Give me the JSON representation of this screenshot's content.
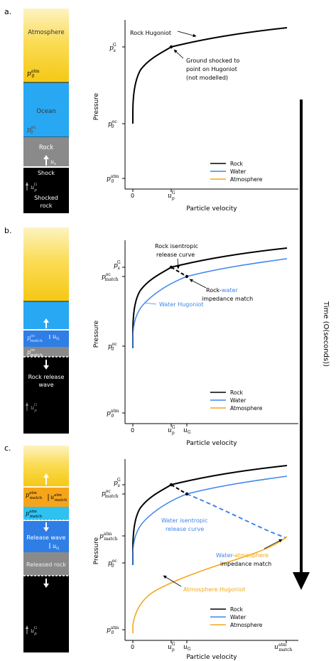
{
  "panels": [
    {
      "letter": "a.",
      "column": [
        {
          "label": "Atmosphere"
        },
        {
          "label": "Ocean"
        },
        {
          "label": "Rock"
        },
        {
          "label": "Shock"
        },
        {
          "label": "Shocked rock"
        }
      ],
      "column_params": {
        "p0_atm": "p",
        "p0_oc": "p",
        "us": "u",
        "upG": "u"
      },
      "axes": {
        "ylabel": "Pressure",
        "xlabel": "Particle velocity",
        "x0": "0"
      },
      "annotations": {
        "rock_hugoniot": "Rock Hugoniot",
        "ground_line1": "Ground shocked to",
        "ground_line2": "point on Hugoniot",
        "ground_line3": "(not modelled)"
      },
      "legend": [
        "Rock",
        "Water",
        "Atmosphere"
      ]
    },
    {
      "letter": "b.",
      "column": [
        {
          "label": "Rock release"
        },
        {
          "label": "wave"
        }
      ],
      "axes": {
        "ylabel": "Pressure",
        "xlabel": "Particle velocity",
        "x0": "0"
      },
      "annotations": {
        "isentrope_line1": "Rock isentropic",
        "isentrope_line2": "release curve",
        "impedance_rock": "Rock-",
        "impedance_water": "water",
        "impedance_line2": "impedance match",
        "water_hugoniot": "Water Hugoniot"
      },
      "legend": [
        "Rock",
        "Water",
        "Atmosphere"
      ]
    },
    {
      "letter": "c.",
      "column": [
        {
          "label": "Release wave"
        },
        {
          "label": "Released rock"
        }
      ],
      "axes": {
        "ylabel": "Pressure",
        "xlabel": "Particle velocity",
        "x0": "0"
      },
      "annotations": {
        "water_isentrope_line1": "Water isentropic",
        "water_isentrope_line2": "release curve",
        "impedance_water": "Water-",
        "impedance_atm": "atmosphere",
        "impedance_line2": "impedance match",
        "atm_hugoniot": "Atmosphere Hugoniot"
      },
      "legend": [
        "Rock",
        "Water",
        "Atmosphere"
      ]
    }
  ],
  "time_arrow_label": "Time (O(seconds))",
  "colors": {
    "rock_curve": "#000000",
    "water_curve": "#3f86e8",
    "atmosphere_curve": "#f2a81d",
    "ocean_fill": "#28a8f2",
    "deep_ocean_fill": "#2f7ee6",
    "atm_match_fill": "#f6a51b",
    "water_match_fill": "#2ec2f0",
    "rock_fill": "#8a8a8a",
    "shocked_fill": "#000000"
  }
}
